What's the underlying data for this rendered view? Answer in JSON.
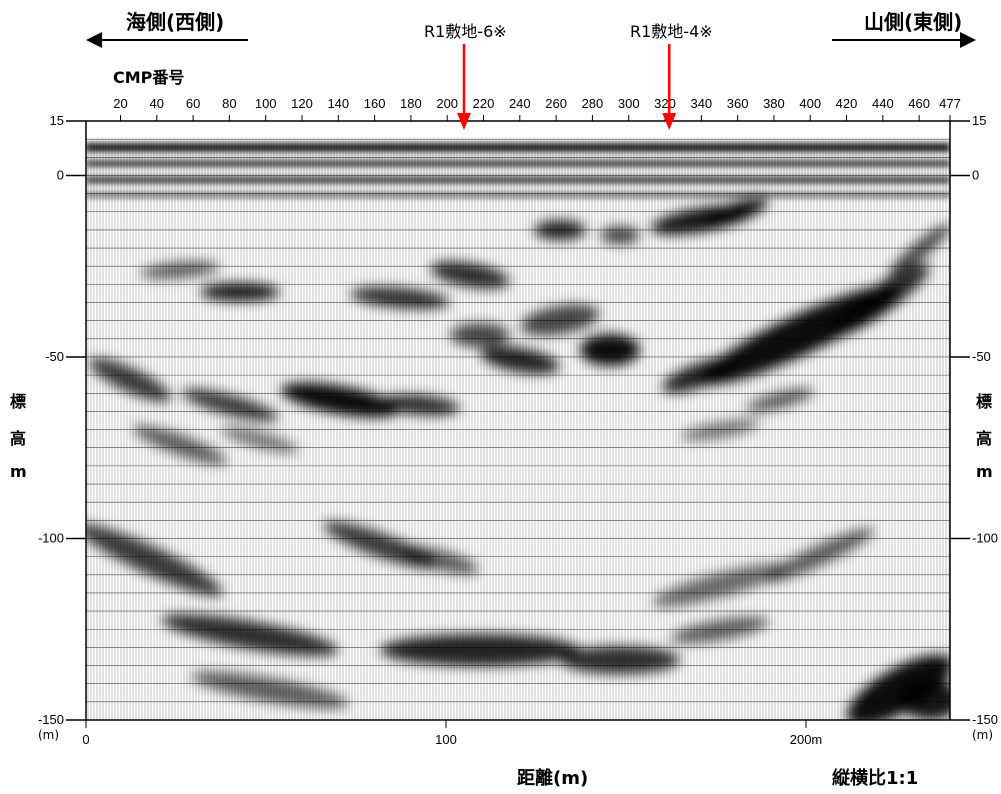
{
  "header": {
    "left_direction": "海側(西側)",
    "right_direction": "山側(東側)",
    "cmp_label": "CMP番号"
  },
  "markers": [
    {
      "label": "R1敷地-6※",
      "distance_m": 105,
      "color": "#ff0000"
    },
    {
      "label": "R1敷地-4※",
      "distance_m": 162,
      "color": "#ff0000"
    }
  ],
  "axes": {
    "cmp_ticks": [
      "20",
      "40",
      "60",
      "80",
      "100",
      "120",
      "140",
      "160",
      "180",
      "200",
      "220",
      "240",
      "260",
      "280",
      "300",
      "320",
      "340",
      "360",
      "380",
      "400",
      "420",
      "440",
      "460",
      "477"
    ],
    "elevation_ticks_left": [
      "15",
      "0",
      "-50",
      "-100",
      "-150"
    ],
    "elevation_ticks_right": [
      "15",
      "0",
      "-50",
      "-100",
      "-150"
    ],
    "unit_left": "(m)",
    "unit_right": "(m)",
    "y_label_chars": [
      "標",
      "高",
      "m"
    ],
    "distance_ticks": [
      "0",
      "100",
      "200m"
    ],
    "distance_label": "距離(m)",
    "aspect_ratio": "縦横比1:1"
  },
  "section": {
    "elevation_range": [
      -150,
      15
    ],
    "distance_range_m": [
      0,
      240
    ],
    "cmp_range": [
      1,
      477
    ]
  }
}
